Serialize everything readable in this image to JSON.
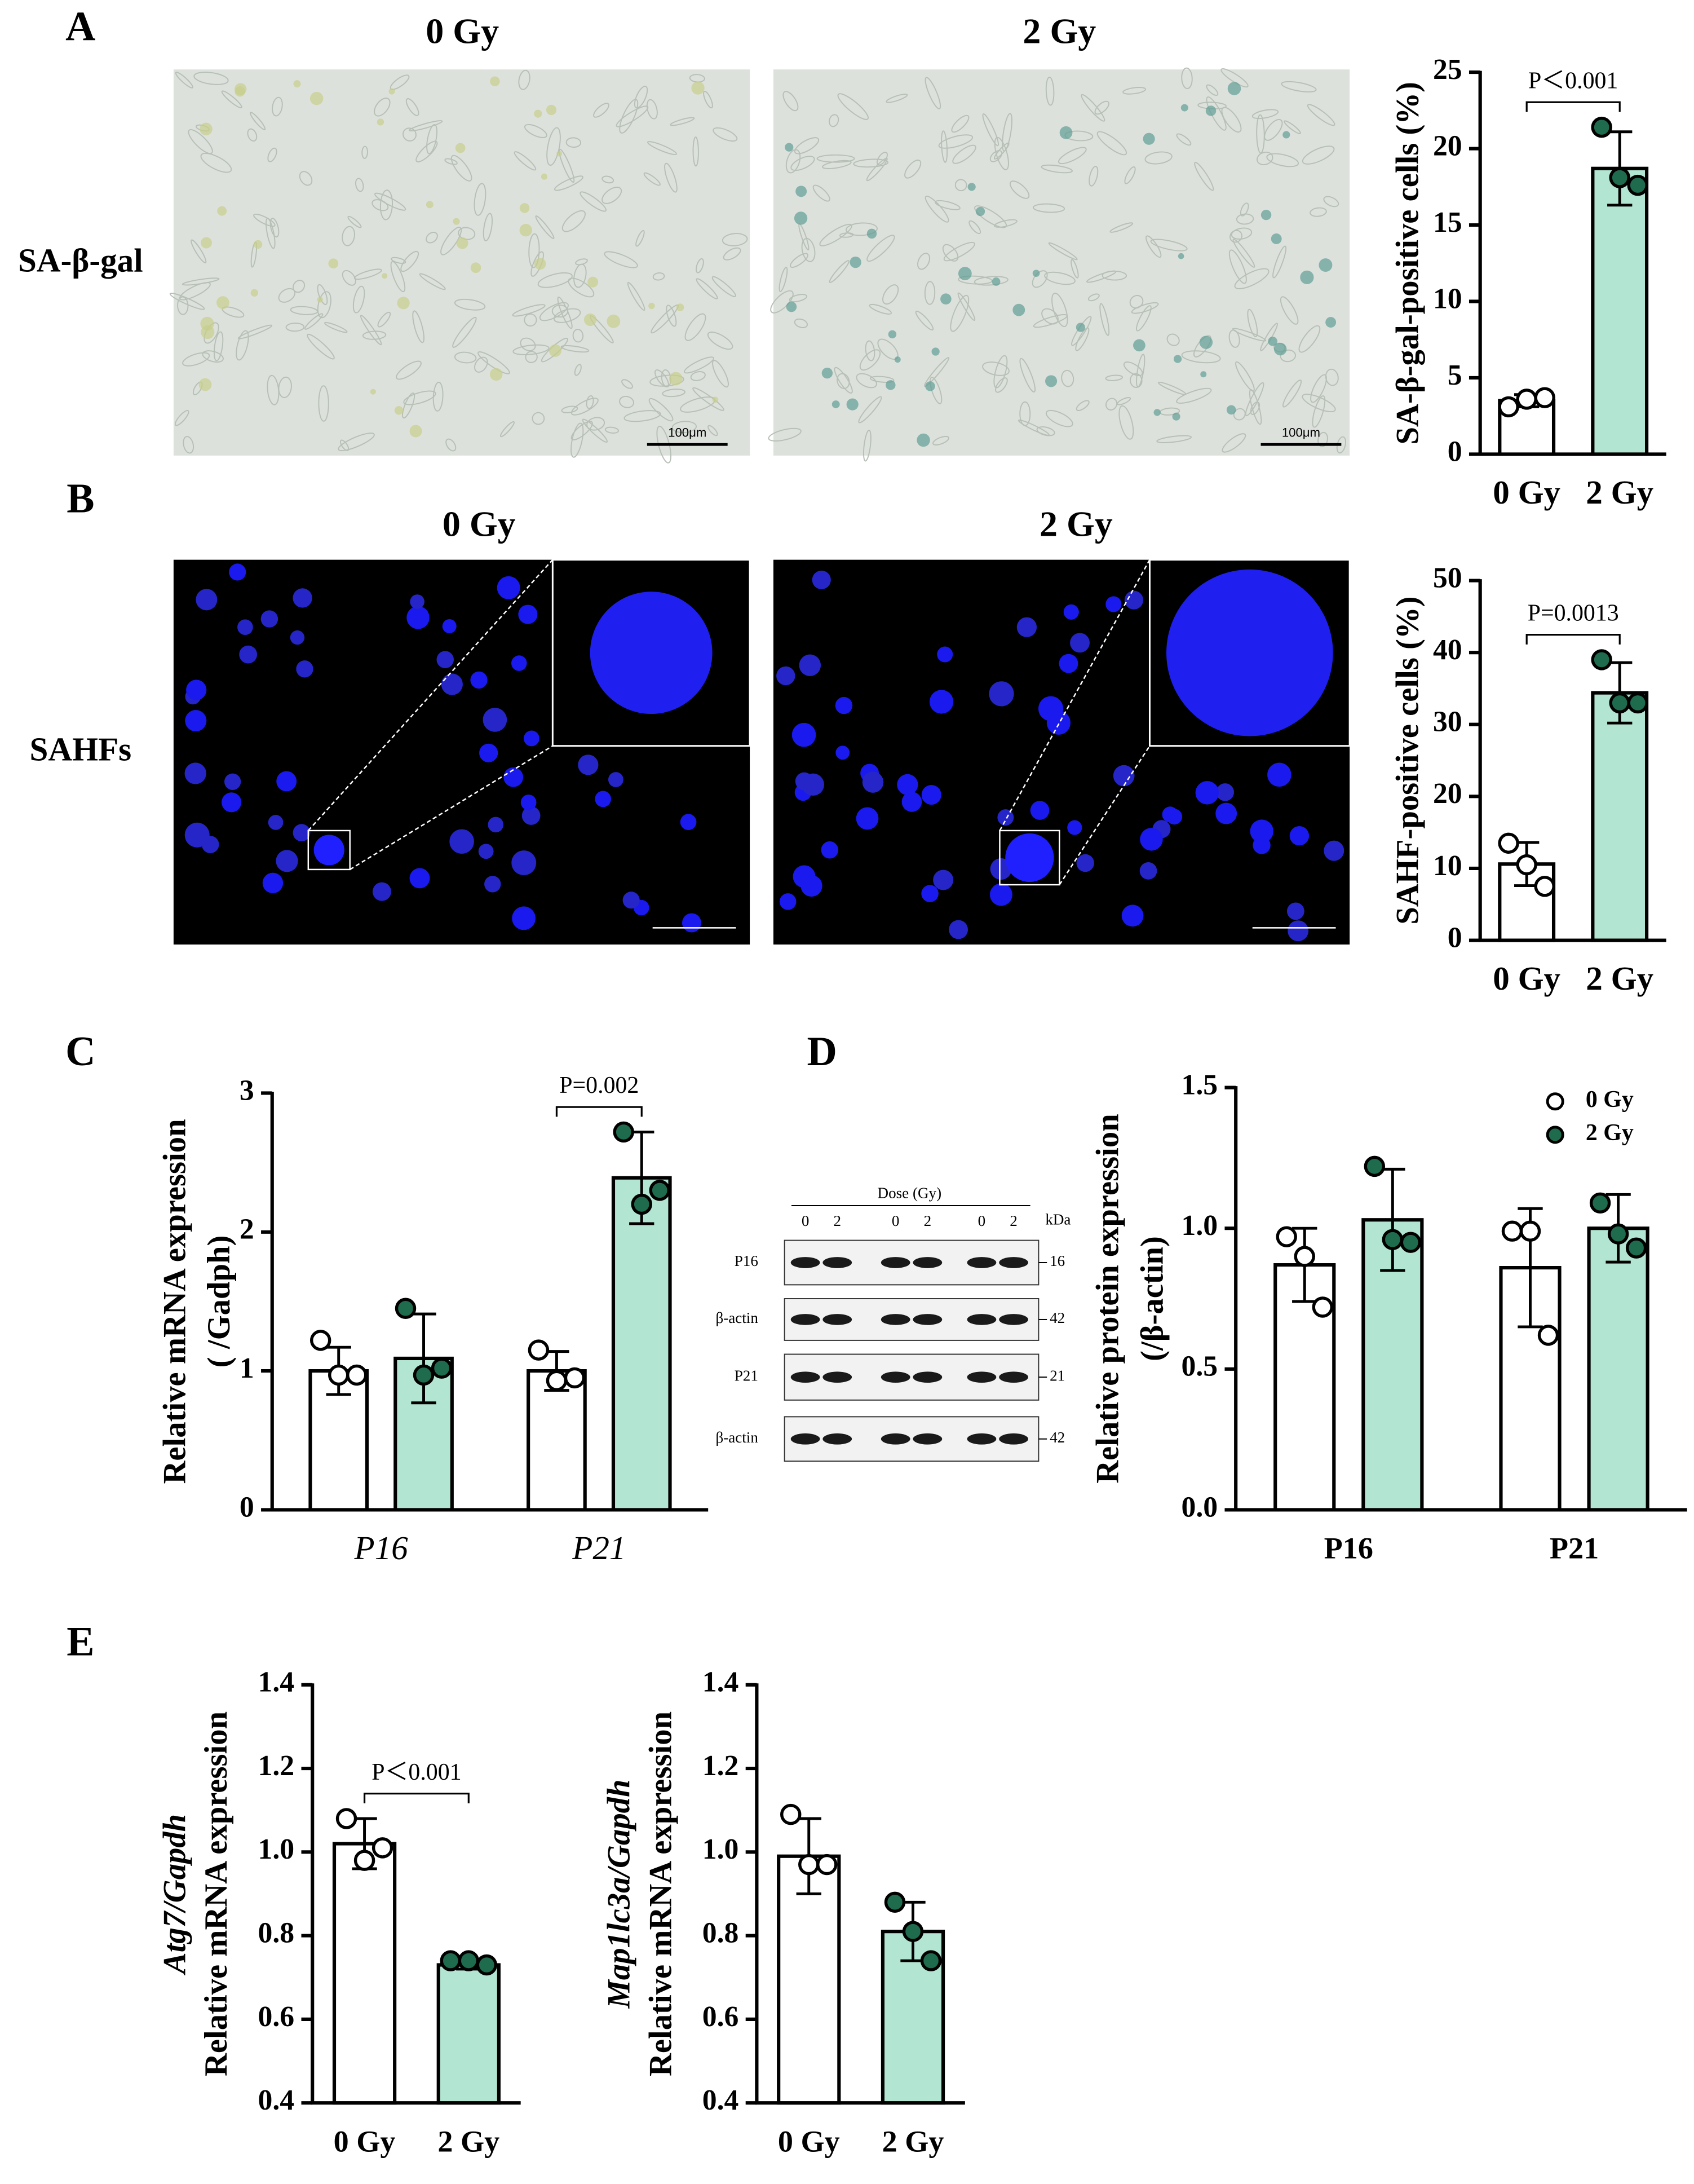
{
  "panel_a": {
    "label": "A",
    "row_label": "SA-β-gal",
    "column_titles": [
      "0 Gy",
      "2 Gy"
    ],
    "scale_bars": [
      "100μm",
      "100μm"
    ]
  },
  "panel_b": {
    "label": "B",
    "row_label": "SAHFs",
    "column_titles": [
      "0 Gy",
      "2 Gy"
    ]
  },
  "panel_c": {
    "label": "C"
  },
  "panel_d": {
    "label": "D",
    "blot": {
      "header": "Dose (Gy)",
      "doses": [
        "0",
        "2",
        "0",
        "2",
        "0",
        "2"
      ],
      "unit": "kDa",
      "rows": [
        {
          "label": "P16",
          "kda": 16
        },
        {
          "label": "β-actin",
          "kda": 42
        },
        {
          "label": "P21",
          "kda": 21
        },
        {
          "label": "β-actin",
          "kda": 42
        }
      ]
    }
  },
  "panel_e": {
    "label": "E"
  },
  "chart_data": [
    {
      "type": "bar",
      "ylabel": [
        "SA-β-gal-positive cells (%)"
      ],
      "categories": [
        "0 Gy",
        "2 Gy"
      ],
      "values": [
        3.5,
        18.7
      ],
      "errors": [
        0.4,
        2.4
      ],
      "points": [
        [
          3.1,
          3.6,
          3.7
        ],
        [
          21.4,
          18.1,
          17.6
        ]
      ],
      "colors": [
        "#ffffff",
        "#b3e6d2"
      ],
      "point_colors": [
        "#ffffff",
        "#1e6b4e"
      ],
      "ylim": [
        0,
        25
      ],
      "yticks": [
        0,
        5,
        10,
        15,
        20,
        25
      ],
      "annotation": "P＜0.001"
    },
    {
      "type": "bar",
      "ylabel": [
        "SAHF-positive cells (%)"
      ],
      "categories": [
        "0 Gy",
        "2 Gy"
      ],
      "values": [
        10.6,
        34.4
      ],
      "errors": [
        3.0,
        4.2
      ],
      "points": [
        [
          13.5,
          10.5,
          7.5
        ],
        [
          39,
          33,
          33
        ]
      ],
      "colors": [
        "#ffffff",
        "#b3e6d2"
      ],
      "point_colors": [
        "#ffffff",
        "#1e6b4e"
      ],
      "ylim": [
        0,
        50
      ],
      "yticks": [
        0,
        10,
        20,
        30,
        40,
        50
      ],
      "annotation": "P=0.0013"
    },
    {
      "type": "grouped_bar",
      "ylabel": [
        "Relative mRNA expression",
        "( /Gadph)"
      ],
      "categories": [
        "P16",
        "P21"
      ],
      "series": [
        {
          "color": "#ffffff",
          "point_color": "#ffffff",
          "values": [
            1.0,
            1.0
          ],
          "errors": [
            0.17,
            0.14
          ],
          "points": [
            [
              1.22,
              0.97,
              0.97
            ],
            [
              1.15,
              0.93,
              0.95
            ]
          ]
        },
        {
          "color": "#b3e6d2",
          "point_color": "#1e6b4e",
          "values": [
            1.09,
            2.39
          ],
          "errors": [
            0.32,
            0.33
          ],
          "points": [
            [
              1.45,
              0.97,
              1.02
            ],
            [
              2.72,
              2.2,
              2.3
            ]
          ]
        }
      ],
      "ylim": [
        0,
        3
      ],
      "yticks": [
        0,
        1,
        2,
        3
      ],
      "annotation": "P=0.002"
    },
    {
      "type": "grouped_bar",
      "ylabel": [
        "Relative protein expression",
        "(/β-actin)"
      ],
      "categories": [
        "P16",
        "P21"
      ],
      "series": [
        {
          "name": "0 Gy",
          "color": "#ffffff",
          "point_color": "#ffffff",
          "values": [
            0.87,
            0.86
          ],
          "errors": [
            0.13,
            0.21
          ],
          "points": [
            [
              0.97,
              0.9,
              0.72
            ],
            [
              0.99,
              0.99,
              0.62
            ]
          ]
        },
        {
          "name": "2 Gy",
          "color": "#b3e6d2",
          "point_color": "#1e6b4e",
          "values": [
            1.03,
            1.0
          ],
          "errors": [
            0.18,
            0.12
          ],
          "points": [
            [
              1.22,
              0.96,
              0.95
            ],
            [
              1.09,
              0.98,
              0.93
            ]
          ]
        }
      ],
      "ylim": [
        0,
        1.5
      ],
      "yticks": [
        {
          "value": 0,
          "label": "0.0"
        },
        0.5,
        {
          "value": 1,
          "label": "1.0"
        },
        1.5
      ],
      "legend": "upper right"
    },
    {
      "type": "bar",
      "ylabel": [
        "Atg7/Gapdh",
        "Relative mRNA expression"
      ],
      "categories": [
        "0 Gy",
        "2 Gy"
      ],
      "values": [
        1.02,
        0.73
      ],
      "errors": [
        0.06,
        0.01
      ],
      "points": [
        [
          1.08,
          0.98,
          1.01
        ],
        [
          0.74,
          0.74,
          0.73
        ]
      ],
      "colors": [
        "#ffffff",
        "#b3e6d2"
      ],
      "point_colors": [
        "#ffffff",
        "#1e6b4e"
      ],
      "ylim": [
        0.4,
        1.4
      ],
      "yticks": [
        0.4,
        0.6,
        0.8,
        {
          "value": 1,
          "label": "1.0"
        },
        1.2,
        1.4
      ],
      "annotation": "P＜0.001"
    },
    {
      "type": "bar",
      "ylabel": [
        "Map1lc3a/Gapdh",
        "Relative mRNA expression"
      ],
      "categories": [
        "0 Gy",
        "2 Gy"
      ],
      "values": [
        0.99,
        0.81
      ],
      "errors": [
        0.09,
        0.07
      ],
      "points": [
        [
          1.09,
          0.97,
          0.97
        ],
        [
          0.88,
          0.81,
          0.74
        ]
      ],
      "colors": [
        "#ffffff",
        "#b3e6d2"
      ],
      "point_colors": [
        "#ffffff",
        "#1e6b4e"
      ],
      "ylim": [
        0.4,
        1.4
      ],
      "yticks": [
        0.4,
        0.6,
        0.8,
        {
          "value": 1,
          "label": "1.0"
        },
        1.2,
        1.4
      ]
    }
  ]
}
